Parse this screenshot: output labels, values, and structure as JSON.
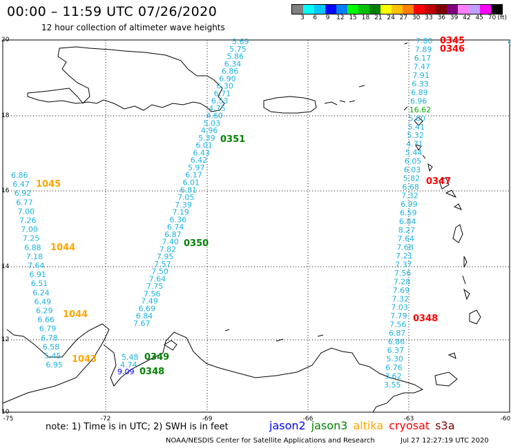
{
  "title": "00:00 – 11:59 UTC 07/26/2020",
  "subtitle": "12 hour collection of altimeter wave heights",
  "legend": {
    "colors": [
      "#808080",
      "#00ffff",
      "#00c8ff",
      "#0000ff",
      "#0080ff",
      "#00ff00",
      "#00c000",
      "#008000",
      "#ffff00",
      "#ffc000",
      "#ff8000",
      "#ff0000",
      "#c00000",
      "#800000",
      "#800080",
      "#ff80ff",
      "#c0a0ff",
      "#ff00ff",
      "#000000"
    ],
    "labels": [
      "3",
      "6",
      "9",
      "12",
      "15",
      "18",
      "21",
      "24",
      "27",
      "30",
      "33",
      "36",
      "39",
      "42",
      "45",
      "70"
    ],
    "unit": "(ft)"
  },
  "axes": {
    "lat_labels": [
      "20",
      "18",
      "16",
      "14",
      "12",
      "10"
    ],
    "lon_labels": [
      "-75",
      "-72",
      "-69",
      "-66",
      "-63",
      "-60"
    ]
  },
  "note": "note: 1) Time is in UTC; 2) SWH is in feet",
  "satellites": [
    {
      "name": "jason2",
      "color": "#0000ff"
    },
    {
      "name": "jason3",
      "color": "#008000"
    },
    {
      "name": "altika",
      "color": "#ffa500"
    },
    {
      "name": "cryosat",
      "color": "#ff0000"
    },
    {
      "name": "s3a",
      "color": "#800000"
    }
  ],
  "credit": "NOAA/NESDIS Center for Satellite Applications and Research",
  "timestamp": "Jul 27 12:27:19 UTC 2020",
  "tracks": {
    "west_altika": [
      "6.86",
      "6.47",
      "6.92",
      "6.77",
      "7.00",
      "7.26",
      "7.00",
      "7.25",
      "6.88",
      "7.18",
      "7.64",
      "6.91",
      "6.51",
      "6.24",
      "6.49",
      "6.29",
      "6.66",
      "6.79",
      "6.78",
      "6.58",
      "5.45",
      "6.95"
    ],
    "jason3_middle": [
      "5.69",
      "5.75",
      "5.86",
      "6.34",
      "6.86",
      "6.90",
      "6.30",
      "6.71",
      "6.53",
      "4.75",
      "4.60",
      "5.03",
      "4.96",
      "5.39",
      "6.01",
      "6.43",
      "6.42",
      "5.97",
      "6.17",
      "6.01",
      "6.81",
      "7.05",
      "7.39",
      "7.19",
      "6.36",
      "6.74",
      "6.87",
      "7.40",
      "7.82",
      "7.95",
      "7.57",
      "7.50",
      "7.64",
      "7.75",
      "7.56",
      "7.49",
      "6.69",
      "6.84",
      "7.67"
    ],
    "east_cryosat": [
      "7.80",
      "7.89",
      "6.17",
      "7.47",
      "7.91",
      "6.33",
      "6.89",
      "6.96",
      "16.62",
      "5.80",
      "5.41",
      "5.32",
      "4.71",
      "5.44",
      "6.05",
      "6.03",
      "5.82",
      "6.68",
      "7.32",
      "6.99",
      "6.59",
      "6.84",
      "8.27",
      "7.64",
      "7.68",
      "7.21",
      "7.37",
      "7.56",
      "7.28",
      "7.69",
      "7.32",
      "7.03",
      "7.79",
      "7.56",
      "6.87",
      "6.86",
      "6.37",
      "5.30",
      "6.76",
      "3.62",
      "3.55"
    ],
    "south_jason3": [
      "5.48",
      "4.74"
    ],
    "south_jason2": [
      "9.09"
    ]
  },
  "time_labels": [
    {
      "text": "0345",
      "sat": "cryosat"
    },
    {
      "text": "0346",
      "sat": "cryosat"
    },
    {
      "text": "0351",
      "sat": "jason3"
    },
    {
      "text": "1045",
      "sat": "altika"
    },
    {
      "text": "0347",
      "sat": "cryosat"
    },
    {
      "text": "0350",
      "sat": "jason3"
    },
    {
      "text": "1044",
      "sat": "altika"
    },
    {
      "text": "1044",
      "sat": "altika"
    },
    {
      "text": "0348",
      "sat": "cryosat"
    },
    {
      "text": "0349",
      "sat": "jason3"
    },
    {
      "text": "0348",
      "sat": "jason3"
    },
    {
      "text": "1043",
      "sat": "altika"
    }
  ],
  "edge_value": "6"
}
